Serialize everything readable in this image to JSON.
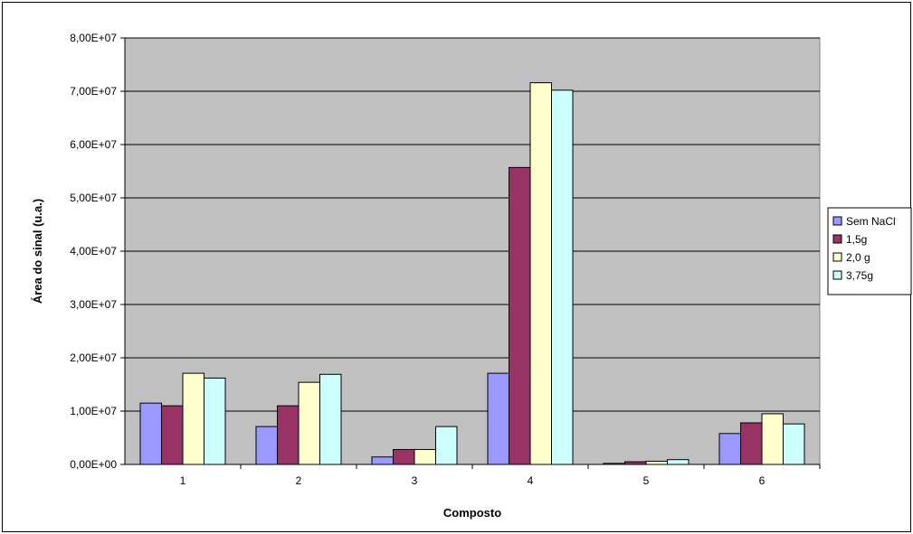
{
  "chart_data": {
    "type": "bar",
    "title": "",
    "xlabel": "Composto",
    "ylabel": "Área do sinal (u.a.)",
    "categories": [
      "1",
      "2",
      "3",
      "4",
      "5",
      "6"
    ],
    "ylim": [
      0,
      80000000
    ],
    "yticks": [
      0,
      10000000,
      20000000,
      30000000,
      40000000,
      50000000,
      60000000,
      70000000,
      80000000
    ],
    "ytick_labels": [
      "0,00E+00",
      "1,00E+07",
      "2,00E+07",
      "3,00E+07",
      "4,00E+07",
      "5,00E+07",
      "6,00E+07",
      "7,00E+07",
      "8,00E+07"
    ],
    "grid": true,
    "legend_position": "right",
    "plot_background": "#c0c0c0",
    "series": [
      {
        "name": "Sem NaCl",
        "color": "#9999ff",
        "values": [
          11500000,
          7100000,
          1400000,
          17100000,
          200000,
          5800000
        ]
      },
      {
        "name": "1,5g",
        "color": "#993366",
        "values": [
          11000000,
          11000000,
          2800000,
          55700000,
          500000,
          7800000
        ]
      },
      {
        "name": "2,0 g",
        "color": "#ffffcc",
        "values": [
          17100000,
          15400000,
          2800000,
          71600000,
          600000,
          9500000
        ]
      },
      {
        "name": "3,75g",
        "color": "#ccffff",
        "values": [
          16200000,
          16900000,
          7100000,
          70200000,
          900000,
          7600000
        ]
      }
    ]
  }
}
